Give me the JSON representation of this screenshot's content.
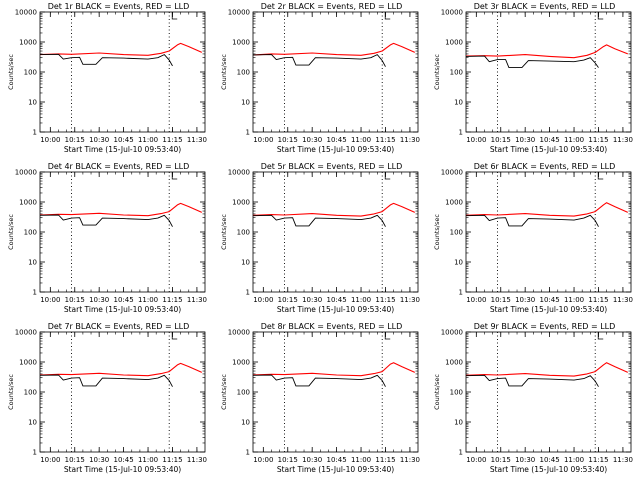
{
  "colors": {
    "events": "#000000",
    "lld": "#ff0000",
    "axis": "#000000",
    "marker": "#000000"
  },
  "chart_data": [
    {
      "type": "line",
      "title": "Det 1r BLACK = Events, RED = LLD",
      "xlabel": "Start Time (15-Jul-10 09:53:40)",
      "ylabel": "Counts/sec",
      "yscale": "log",
      "ylim": [
        1,
        10000
      ],
      "xlim_minutes_after_start": [
        0,
        101.3
      ],
      "x_ticks": [
        "10:00",
        "10:15",
        "10:30",
        "10:45",
        "11:00",
        "11:15",
        "11:30"
      ],
      "y_ticks": [
        "1",
        "10",
        "100",
        "1000",
        "10000"
      ],
      "vertical_markers": [
        "10:13",
        "11:13"
      ],
      "series": [
        {
          "name": "Events",
          "color": "black",
          "x": [
            "09:53",
            "10:05",
            "10:08",
            "10:13",
            "10:18",
            "10:20",
            "10:28",
            "10:32",
            "10:45",
            "11:00",
            "11:06",
            "11:10",
            "11:13",
            "11:15"
          ],
          "values": [
            380,
            390,
            270,
            300,
            310,
            180,
            180,
            300,
            290,
            270,
            300,
            380,
            250,
            160
          ]
        },
        {
          "name": "LLD",
          "color": "red",
          "x": [
            "09:53",
            "10:05",
            "10:13",
            "10:30",
            "10:45",
            "11:00",
            "11:08",
            "11:13",
            "11:18",
            "11:20",
            "11:25",
            "11:33"
          ],
          "values": [
            380,
            400,
            390,
            430,
            380,
            360,
            420,
            500,
            800,
            900,
            700,
            450
          ]
        }
      ]
    },
    {
      "type": "line",
      "title": "Det 2r BLACK = Events, RED = LLD",
      "xlabel": "Start Time (15-Jul-10 09:53:40)",
      "ylabel": "Counts/sec",
      "yscale": "log",
      "ylim": [
        1,
        10000
      ],
      "xlim_minutes_after_start": [
        0,
        101.3
      ],
      "x_ticks": [
        "10:00",
        "10:15",
        "10:30",
        "10:45",
        "11:00",
        "11:15",
        "11:30"
      ],
      "y_ticks": [
        "1",
        "10",
        "100",
        "1000",
        "10000"
      ],
      "vertical_markers": [
        "10:13",
        "11:13"
      ],
      "series": [
        {
          "name": "Events",
          "color": "black",
          "x": [
            "09:53",
            "10:05",
            "10:08",
            "10:13",
            "10:18",
            "10:20",
            "10:28",
            "10:32",
            "10:45",
            "11:00",
            "11:06",
            "11:10",
            "11:13",
            "11:15"
          ],
          "values": [
            370,
            380,
            260,
            300,
            310,
            170,
            170,
            300,
            290,
            270,
            300,
            380,
            240,
            150
          ]
        },
        {
          "name": "LLD",
          "color": "red",
          "x": [
            "09:53",
            "10:05",
            "10:13",
            "10:30",
            "10:45",
            "11:00",
            "11:08",
            "11:13",
            "11:18",
            "11:20",
            "11:25",
            "11:33"
          ],
          "values": [
            370,
            400,
            390,
            430,
            380,
            360,
            420,
            500,
            800,
            900,
            700,
            450
          ]
        }
      ]
    },
    {
      "type": "line",
      "title": "Det 3r BLACK = Events, RED = LLD",
      "xlabel": "Start Time (15-Jul-10 09:53:40)",
      "ylabel": "Counts/sec",
      "yscale": "log",
      "ylim": [
        1,
        10000
      ],
      "xlim_minutes_after_start": [
        0,
        101.3
      ],
      "x_ticks": [
        "10:00",
        "10:15",
        "10:30",
        "10:45",
        "11:00",
        "11:15",
        "11:30"
      ],
      "y_ticks": [
        "1",
        "10",
        "100",
        "1000",
        "10000"
      ],
      "vertical_markers": [
        "10:13",
        "11:13"
      ],
      "series": [
        {
          "name": "Events",
          "color": "black",
          "x": [
            "09:53",
            "10:05",
            "10:08",
            "10:13",
            "10:18",
            "10:20",
            "10:28",
            "10:32",
            "10:45",
            "11:00",
            "11:06",
            "11:10",
            "11:13",
            "11:15"
          ],
          "values": [
            330,
            340,
            220,
            260,
            260,
            140,
            140,
            240,
            230,
            220,
            250,
            300,
            200,
            140
          ]
        },
        {
          "name": "LLD",
          "color": "red",
          "x": [
            "09:53",
            "10:05",
            "10:13",
            "10:30",
            "10:45",
            "11:00",
            "11:08",
            "11:13",
            "11:18",
            "11:20",
            "11:25",
            "11:33"
          ],
          "values": [
            340,
            350,
            340,
            380,
            330,
            300,
            360,
            450,
            700,
            800,
            600,
            400
          ]
        }
      ]
    },
    {
      "type": "line",
      "title": "Det 4r BLACK = Events, RED = LLD",
      "xlabel": "Start Time (15-Jul-10 09:53:40)",
      "ylabel": "Counts/sec",
      "yscale": "log",
      "ylim": [
        1,
        10000
      ],
      "xlim_minutes_after_start": [
        0,
        101.3
      ],
      "x_ticks": [
        "10:00",
        "10:15",
        "10:30",
        "10:45",
        "11:00",
        "11:15",
        "11:30"
      ],
      "y_ticks": [
        "1",
        "10",
        "100",
        "1000",
        "10000"
      ],
      "vertical_markers": [
        "10:13",
        "11:13"
      ],
      "series": [
        {
          "name": "Events",
          "color": "black",
          "x": [
            "09:53",
            "10:05",
            "10:08",
            "10:13",
            "10:18",
            "10:20",
            "10:28",
            "10:32",
            "10:45",
            "11:00",
            "11:06",
            "11:10",
            "11:13",
            "11:15"
          ],
          "values": [
            360,
            370,
            250,
            290,
            300,
            170,
            170,
            290,
            280,
            260,
            290,
            360,
            240,
            150
          ]
        },
        {
          "name": "LLD",
          "color": "red",
          "x": [
            "09:53",
            "10:05",
            "10:13",
            "10:30",
            "10:45",
            "11:00",
            "11:08",
            "11:13",
            "11:18",
            "11:20",
            "11:25",
            "11:33"
          ],
          "values": [
            370,
            390,
            380,
            420,
            370,
            350,
            410,
            480,
            800,
            900,
            700,
            450
          ]
        }
      ]
    },
    {
      "type": "line",
      "title": "Det 5r BLACK = Events, RED = LLD",
      "xlabel": "Start Time (15-Jul-10 09:53:40)",
      "ylabel": "Counts/sec",
      "yscale": "log",
      "ylim": [
        1,
        10000
      ],
      "xlim_minutes_after_start": [
        0,
        101.3
      ],
      "x_ticks": [
        "10:00",
        "10:15",
        "10:30",
        "10:45",
        "11:00",
        "11:15",
        "11:30"
      ],
      "y_ticks": [
        "1",
        "10",
        "100",
        "1000",
        "10000"
      ],
      "vertical_markers": [
        "10:13",
        "11:13"
      ],
      "series": [
        {
          "name": "Events",
          "color": "black",
          "x": [
            "09:53",
            "10:05",
            "10:08",
            "10:13",
            "10:18",
            "10:20",
            "10:28",
            "10:32",
            "10:45",
            "11:00",
            "11:06",
            "11:10",
            "11:13",
            "11:15"
          ],
          "values": [
            350,
            360,
            250,
            290,
            300,
            160,
            160,
            290,
            280,
            260,
            290,
            360,
            240,
            150
          ]
        },
        {
          "name": "LLD",
          "color": "red",
          "x": [
            "09:53",
            "10:05",
            "10:13",
            "10:30",
            "10:45",
            "11:00",
            "11:08",
            "11:13",
            "11:18",
            "11:20",
            "11:25",
            "11:33"
          ],
          "values": [
            360,
            380,
            370,
            410,
            360,
            340,
            400,
            480,
            800,
            900,
            700,
            450
          ]
        }
      ]
    },
    {
      "type": "line",
      "title": "Det 6r BLACK = Events, RED = LLD",
      "xlabel": "Start Time (15-Jul-10 09:53:40)",
      "ylabel": "Counts/sec",
      "yscale": "log",
      "ylim": [
        1,
        10000
      ],
      "xlim_minutes_after_start": [
        0,
        101.3
      ],
      "x_ticks": [
        "10:00",
        "10:15",
        "10:30",
        "10:45",
        "11:00",
        "11:15",
        "11:30"
      ],
      "y_ticks": [
        "1",
        "10",
        "100",
        "1000",
        "10000"
      ],
      "vertical_markers": [
        "10:13",
        "11:13"
      ],
      "series": [
        {
          "name": "Events",
          "color": "black",
          "x": [
            "09:53",
            "10:05",
            "10:08",
            "10:13",
            "10:18",
            "10:20",
            "10:28",
            "10:32",
            "10:45",
            "11:00",
            "11:06",
            "11:10",
            "11:13",
            "11:15"
          ],
          "values": [
            350,
            360,
            240,
            290,
            300,
            160,
            160,
            280,
            270,
            250,
            290,
            360,
            240,
            150
          ]
        },
        {
          "name": "LLD",
          "color": "red",
          "x": [
            "09:53",
            "10:05",
            "10:13",
            "10:30",
            "10:45",
            "11:00",
            "11:08",
            "11:13",
            "11:18",
            "11:20",
            "11:25",
            "11:33"
          ],
          "values": [
            360,
            380,
            370,
            410,
            360,
            340,
            400,
            480,
            800,
            950,
            700,
            450
          ]
        }
      ]
    },
    {
      "type": "line",
      "title": "Det 7r BLACK = Events, RED = LLD",
      "xlabel": "Start Time (15-Jul-10 09:53:40)",
      "ylabel": "Counts/sec",
      "yscale": "log",
      "ylim": [
        1,
        10000
      ],
      "xlim_minutes_after_start": [
        0,
        101.3
      ],
      "x_ticks": [
        "10:00",
        "10:15",
        "10:30",
        "10:45",
        "11:00",
        "11:15",
        "11:30"
      ],
      "y_ticks": [
        "1",
        "10",
        "100",
        "1000",
        "10000"
      ],
      "vertical_markers": [
        "10:13",
        "11:13"
      ],
      "series": [
        {
          "name": "Events",
          "color": "black",
          "x": [
            "09:53",
            "10:05",
            "10:08",
            "10:13",
            "10:18",
            "10:20",
            "10:28",
            "10:32",
            "10:45",
            "11:00",
            "11:06",
            "11:10",
            "11:13",
            "11:15"
          ],
          "values": [
            360,
            370,
            250,
            290,
            300,
            160,
            160,
            290,
            280,
            260,
            290,
            360,
            240,
            150
          ]
        },
        {
          "name": "LLD",
          "color": "red",
          "x": [
            "09:53",
            "10:05",
            "10:13",
            "10:30",
            "10:45",
            "11:00",
            "11:08",
            "11:13",
            "11:18",
            "11:20",
            "11:25",
            "11:33"
          ],
          "values": [
            370,
            390,
            380,
            420,
            370,
            350,
            410,
            480,
            800,
            900,
            700,
            450
          ]
        }
      ]
    },
    {
      "type": "line",
      "title": "Det 8r BLACK = Events, RED = LLD",
      "xlabel": "Start Time (15-Jul-10 09:53:40)",
      "ylabel": "Counts/sec",
      "yscale": "log",
      "ylim": [
        1,
        10000
      ],
      "xlim_minutes_after_start": [
        0,
        101.3
      ],
      "x_ticks": [
        "10:00",
        "10:15",
        "10:30",
        "10:45",
        "11:00",
        "11:15",
        "11:30"
      ],
      "y_ticks": [
        "1",
        "10",
        "100",
        "1000",
        "10000"
      ],
      "vertical_markers": [
        "10:13",
        "11:13"
      ],
      "series": [
        {
          "name": "Events",
          "color": "black",
          "x": [
            "09:53",
            "10:05",
            "10:08",
            "10:13",
            "10:18",
            "10:20",
            "10:28",
            "10:32",
            "10:45",
            "11:00",
            "11:06",
            "11:10",
            "11:13",
            "11:15"
          ],
          "values": [
            360,
            370,
            250,
            290,
            300,
            160,
            160,
            290,
            280,
            260,
            290,
            360,
            240,
            150
          ]
        },
        {
          "name": "LLD",
          "color": "red",
          "x": [
            "09:53",
            "10:05",
            "10:13",
            "10:30",
            "10:45",
            "11:00",
            "11:08",
            "11:13",
            "11:18",
            "11:20",
            "11:25",
            "11:33"
          ],
          "values": [
            370,
            390,
            380,
            420,
            370,
            350,
            410,
            480,
            850,
            950,
            700,
            450
          ]
        }
      ]
    },
    {
      "type": "line",
      "title": "Det 9r BLACK = Events, RED = LLD",
      "xlabel": "Start Time (15-Jul-10 09:53:40)",
      "ylabel": "Counts/sec",
      "yscale": "log",
      "ylim": [
        1,
        10000
      ],
      "xlim_minutes_after_start": [
        0,
        101.3
      ],
      "x_ticks": [
        "10:00",
        "10:15",
        "10:30",
        "10:45",
        "11:00",
        "11:15",
        "11:30"
      ],
      "y_ticks": [
        "1",
        "10",
        "100",
        "1000",
        "10000"
      ],
      "vertical_markers": [
        "10:13",
        "11:13"
      ],
      "series": [
        {
          "name": "Events",
          "color": "black",
          "x": [
            "09:53",
            "10:05",
            "10:08",
            "10:13",
            "10:18",
            "10:20",
            "10:28",
            "10:32",
            "10:45",
            "11:00",
            "11:06",
            "11:10",
            "11:13",
            "11:15"
          ],
          "values": [
            350,
            360,
            240,
            280,
            290,
            160,
            160,
            280,
            270,
            250,
            280,
            350,
            230,
            150
          ]
        },
        {
          "name": "LLD",
          "color": "red",
          "x": [
            "09:53",
            "10:05",
            "10:13",
            "10:30",
            "10:45",
            "11:00",
            "11:08",
            "11:13",
            "11:18",
            "11:20",
            "11:25",
            "11:33"
          ],
          "values": [
            360,
            380,
            370,
            410,
            360,
            340,
            400,
            480,
            800,
            950,
            700,
            450
          ]
        }
      ]
    }
  ]
}
